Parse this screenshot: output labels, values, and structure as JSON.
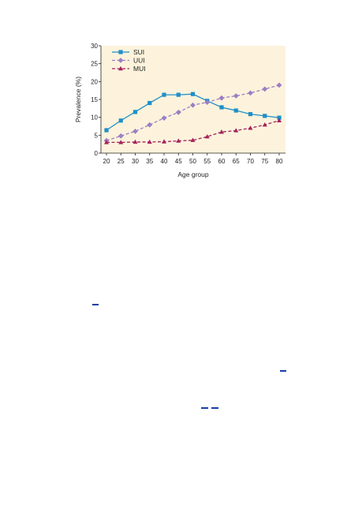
{
  "chart_data": {
    "type": "line",
    "categories": [
      "20",
      "25",
      "30",
      "35",
      "40",
      "45",
      "50",
      "55",
      "60",
      "65",
      "70",
      "75",
      "80"
    ],
    "series": [
      {
        "name": "SUI",
        "color": "#1f8fc8",
        "marker": "square",
        "dash": "solid",
        "values": [
          6.4,
          9.1,
          11.5,
          14.0,
          16.3,
          16.3,
          16.5,
          14.6,
          12.8,
          11.9,
          10.9,
          10.4,
          9.9
        ]
      },
      {
        "name": "UUI",
        "color": "#9b7fc4",
        "marker": "diamond",
        "dash": "dashed",
        "values": [
          3.5,
          4.8,
          6.1,
          7.9,
          9.8,
          11.4,
          13.4,
          14.2,
          15.4,
          16.0,
          16.8,
          17.9,
          19.0
        ]
      },
      {
        "name": "MUI",
        "color": "#a3225e",
        "marker": "triangle",
        "dash": "dashed",
        "values": [
          3.0,
          3.0,
          3.1,
          3.1,
          3.2,
          3.4,
          3.6,
          4.6,
          5.9,
          6.3,
          7.0,
          7.9,
          9.1
        ]
      }
    ],
    "xlabel": "Age group",
    "ylabel": "Prevalence (%)",
    "ylim": [
      0,
      30
    ],
    "yticks": [
      "0",
      "5",
      "10",
      "15",
      "20",
      "25",
      "30"
    ],
    "plot_background": "#fdf3dc",
    "grid": false,
    "legend_position": "top-left"
  }
}
